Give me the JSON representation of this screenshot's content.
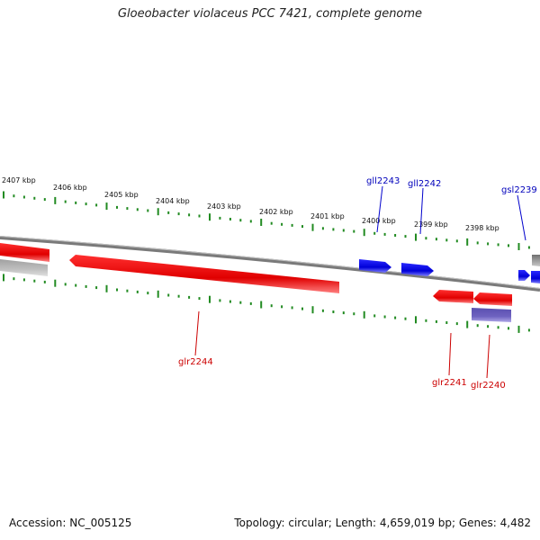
{
  "title": "Gloeobacter violaceus PCC 7421, complete genome",
  "footer": {
    "accession": "Accession: NC_005125",
    "summary": "Topology: circular; Length: 4,659,019 bp; Genes: 4,482"
  },
  "colors": {
    "forward_gene": "#0000e0",
    "reverse_gene": "#e00000",
    "tick": "#228b22",
    "backbone": "#8a8a8a",
    "reverse_gene_label": "#cc0000",
    "forward_gene_label": "#0000bb",
    "rna": "#6e62c0",
    "pseudo": "#b0b0b0"
  },
  "scale": {
    "unit": "kbp",
    "labels": [
      {
        "kbp": 2407,
        "text": "2407 kbp"
      },
      {
        "kbp": 2406,
        "text": "2406 kbp"
      },
      {
        "kbp": 2405,
        "text": "2405 kbp"
      },
      {
        "kbp": 2404,
        "text": "2404 kbp"
      },
      {
        "kbp": 2403,
        "text": "2403 kbp"
      },
      {
        "kbp": 2402,
        "text": "2402 kbp"
      },
      {
        "kbp": 2401,
        "text": "2401 kbp"
      },
      {
        "kbp": 2400,
        "text": "2400 kbp"
      },
      {
        "kbp": 2399,
        "text": "2399 kbp"
      },
      {
        "kbp": 2398,
        "text": "2398 kbp"
      }
    ]
  },
  "genes": [
    {
      "name": "glr2244",
      "strand": "reverse",
      "label": "glr2244"
    },
    {
      "name": "glr2241",
      "strand": "reverse",
      "label": "glr2241"
    },
    {
      "name": "glr2240",
      "strand": "reverse",
      "label": "glr2240"
    },
    {
      "name": "gll2243",
      "strand": "forward",
      "label": "gll2243"
    },
    {
      "name": "gll2242",
      "strand": "forward",
      "label": "gll2242"
    },
    {
      "name": "gsl2239",
      "strand": "forward",
      "label": "gsl2239"
    }
  ]
}
